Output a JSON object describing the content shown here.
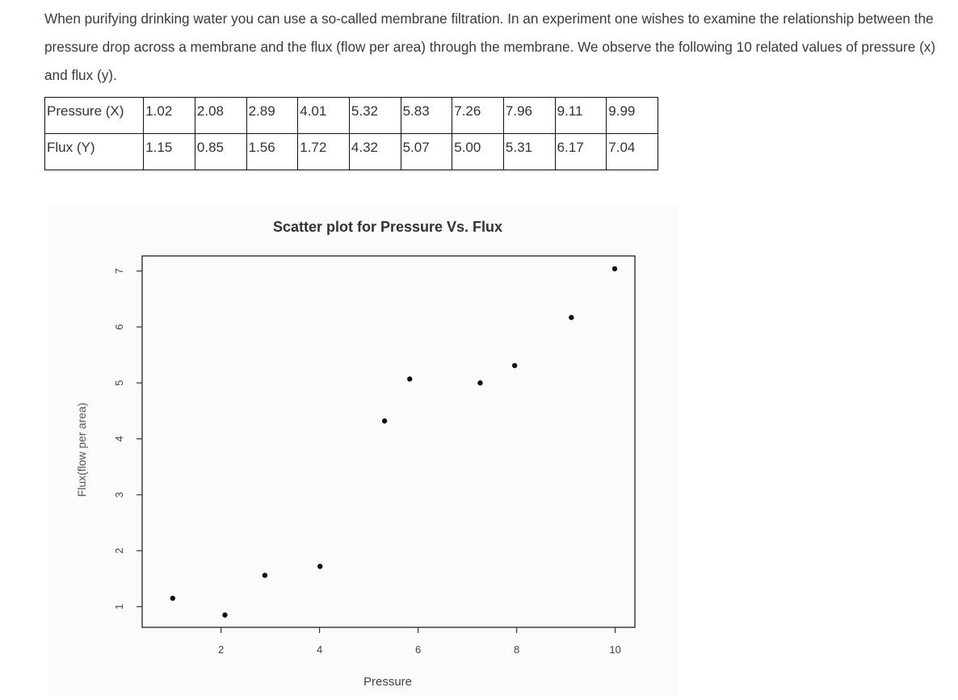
{
  "intro": {
    "text": "When purifying drinking water you can use a so-called membrane filtration. In an experiment one wishes to examine the relationship between the pressure drop across a membrane and the flux (flow per area) through the membrane. We observe the following 10 related values of pressure (x) and flux (y)."
  },
  "table": {
    "row_x_label": "Pressure (X)",
    "row_y_label": "Flux (Y)",
    "x_values": [
      "1.02",
      "2.08",
      "2.89",
      "4.01",
      "5.32",
      "5.83",
      "7.26",
      "7.96",
      "9.11",
      "9.99"
    ],
    "y_values": [
      "1.15",
      "0.85",
      "1.56",
      "1.72",
      "4.32",
      "5.07",
      "5.00",
      "5.31",
      "6.17",
      "7.04"
    ]
  },
  "chart_data": {
    "type": "scatter",
    "title": "Scatter plot for Pressure Vs. Flux",
    "xlabel": "Pressure",
    "ylabel": "Flux(flow per area)",
    "x": [
      1.02,
      2.08,
      2.89,
      4.01,
      5.32,
      5.83,
      7.26,
      7.96,
      9.11,
      9.99
    ],
    "y": [
      1.15,
      0.85,
      1.56,
      1.72,
      4.32,
      5.07,
      5.0,
      5.31,
      6.17,
      7.04
    ],
    "xlim": [
      0.4,
      10.4
    ],
    "ylim": [
      0.63,
      7.27
    ],
    "x_ticks": [
      2,
      4,
      6,
      8,
      10
    ],
    "y_ticks": [
      1,
      2,
      3,
      4,
      5,
      6,
      7
    ],
    "grid": false,
    "legend": "none",
    "point_color": "#111111"
  }
}
